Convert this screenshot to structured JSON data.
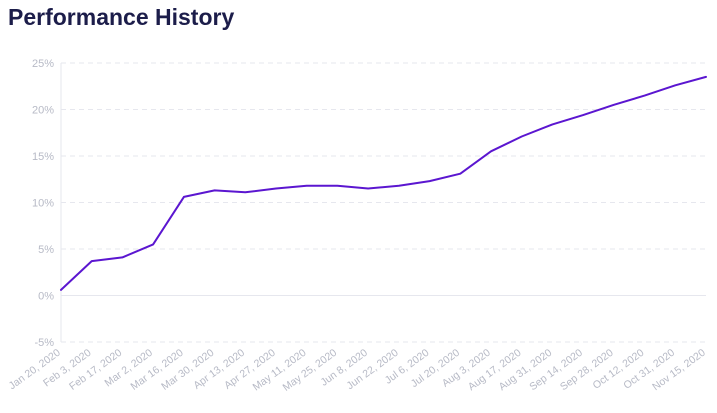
{
  "page": {
    "title": "Performance History"
  },
  "colors": {
    "line": "#5b16d0",
    "grid": "#e6e7ee",
    "tick": "#b7bac6",
    "title": "#1c1d4a"
  },
  "chart_data": {
    "type": "line",
    "title": "Performance History",
    "xlabel": "",
    "ylabel": "",
    "y_unit": "%",
    "ylim": [
      -5,
      25
    ],
    "yticks": [
      -5,
      0,
      5,
      10,
      15,
      20,
      25
    ],
    "ytick_labels": [
      "-5%",
      "0%",
      "5%",
      "10%",
      "15%",
      "20%",
      "25%"
    ],
    "grid": true,
    "legend": "none",
    "x": [
      "Jan 20, 2020",
      "Feb 3, 2020",
      "Feb 17, 2020",
      "Mar 2, 2020",
      "Mar 16, 2020",
      "Mar 30, 2020",
      "Apr 13, 2020",
      "Apr 27, 2020",
      "May 11, 2020",
      "May 25, 2020",
      "Jun 8, 2020",
      "Jun 22, 2020",
      "Jul 6, 2020",
      "Jul 20, 2020",
      "Aug 3, 2020",
      "Aug 17, 2020",
      "Aug 31, 2020",
      "Sep 14, 2020",
      "Sep 28, 2020",
      "Oct 12, 2020",
      "Oct 31, 2020",
      "Nov 15, 2020"
    ],
    "series": [
      {
        "values": [
          0.6,
          3.7,
          4.1,
          5.5,
          10.6,
          11.3,
          11.1,
          11.5,
          11.8,
          11.8,
          11.5,
          11.8,
          12.3,
          13.1,
          15.5,
          17.1,
          18.4,
          19.4,
          20.5,
          21.5,
          22.6,
          23.5
        ]
      }
    ]
  }
}
